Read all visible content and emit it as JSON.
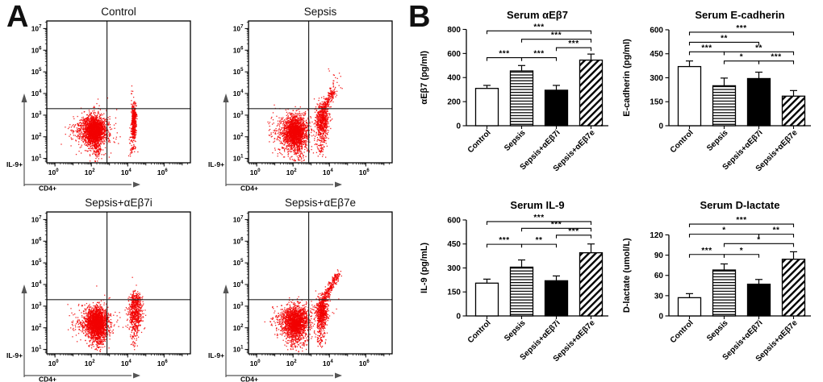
{
  "figure": {
    "panel_a_label": "A",
    "panel_b_label": "B"
  },
  "panel_a": {
    "x_log_range": [
      -0.45,
      7.45
    ],
    "y_log_range": [
      0.8,
      7.35
    ],
    "dot_color": "#f20000",
    "x_axis_label": "CD4+",
    "y_axis_label": "IL-9+"
  },
  "chart_data": [
    {
      "type": "scatter",
      "panel": "A",
      "title": "Control",
      "xlabel": "CD4+",
      "ylabel": "IL-9+",
      "x_scale": "log10",
      "y_scale": "log10",
      "x_ticks_exp": [
        0,
        2,
        4,
        6
      ],
      "y_ticks_exp": [
        1,
        2,
        3,
        4,
        5,
        6,
        7
      ],
      "quadrant_gate": {
        "x_log10": 2.86,
        "y_log10": 3.3
      },
      "populations": [
        {
          "kind": "blob",
          "n": 1700,
          "cx": 2.18,
          "cy": 2.3,
          "sx": 0.3,
          "sy": 0.3
        },
        {
          "kind": "blob",
          "n": 450,
          "cx": 2.1,
          "cy": 2.25,
          "sx": 0.55,
          "sy": 0.48
        },
        {
          "kind": "blob",
          "n": 60,
          "cx": 1.4,
          "cy": 2.3,
          "sx": 0.35,
          "sy": 0.3
        },
        {
          "kind": "streak",
          "n": 160,
          "x1": 2.25,
          "y1": 1.05,
          "x2": 2.3,
          "y2": 2.0,
          "s": 0.22
        },
        {
          "kind": "streak",
          "n": 330,
          "x1": 4.32,
          "y1": 2.0,
          "x2": 4.36,
          "y2": 3.1,
          "s": 0.07
        },
        {
          "kind": "blob",
          "n": 90,
          "cx": 4.34,
          "cy": 3.25,
          "sx": 0.07,
          "sy": 0.18
        },
        {
          "kind": "streak",
          "n": 50,
          "x1": 4.28,
          "y1": 1.25,
          "x2": 4.32,
          "y2": 2.0,
          "s": 0.1
        },
        {
          "kind": "blob",
          "n": 8,
          "cx": 4.3,
          "cy": 3.9,
          "sx": 0.1,
          "sy": 0.25
        }
      ]
    },
    {
      "type": "scatter",
      "panel": "A",
      "title": "Sepsis",
      "xlabel": "CD4+",
      "ylabel": "IL-9+",
      "x_scale": "log10",
      "y_scale": "log10",
      "x_ticks_exp": [
        0,
        2,
        4,
        6
      ],
      "y_ticks_exp": [
        1,
        2,
        3,
        4,
        5,
        6,
        7
      ],
      "quadrant_gate": {
        "x_log10": 2.86,
        "y_log10": 3.3
      },
      "populations": [
        {
          "kind": "blob",
          "n": 1500,
          "cx": 2.12,
          "cy": 2.25,
          "sx": 0.3,
          "sy": 0.32
        },
        {
          "kind": "blob",
          "n": 450,
          "cx": 2.05,
          "cy": 2.2,
          "sx": 0.55,
          "sy": 0.5
        },
        {
          "kind": "blob",
          "n": 60,
          "cx": 1.35,
          "cy": 2.25,
          "sx": 0.35,
          "sy": 0.3
        },
        {
          "kind": "streak",
          "n": 170,
          "x1": 2.2,
          "y1": 1.05,
          "x2": 2.25,
          "y2": 1.95,
          "s": 0.25
        },
        {
          "kind": "blob",
          "n": 600,
          "cx": 3.62,
          "cy": 2.75,
          "sx": 0.17,
          "sy": 0.4
        },
        {
          "kind": "streak",
          "n": 180,
          "x1": 3.7,
          "y1": 3.3,
          "x2": 4.25,
          "y2": 4.15,
          "s": 0.1
        },
        {
          "kind": "blob",
          "n": 25,
          "cx": 4.25,
          "cy": 4.35,
          "sx": 0.22,
          "sy": 0.25
        },
        {
          "kind": "streak",
          "n": 70,
          "x1": 3.55,
          "y1": 1.2,
          "x2": 3.6,
          "y2": 2.1,
          "s": 0.13
        },
        {
          "kind": "blob",
          "n": 2,
          "cx": 4.0,
          "cy": 5.15,
          "sx": 0.05,
          "sy": 0.05
        }
      ]
    },
    {
      "type": "scatter",
      "panel": "A",
      "title": "Sepsis+αEβ7i",
      "xlabel": "CD4+",
      "ylabel": "IL-9+",
      "x_scale": "log10",
      "y_scale": "log10",
      "x_ticks_exp": [
        0,
        2,
        4,
        6
      ],
      "y_ticks_exp": [
        1,
        2,
        3,
        4,
        5,
        6,
        7
      ],
      "quadrant_gate": {
        "x_log10": 2.86,
        "y_log10": 3.3
      },
      "populations": [
        {
          "kind": "blob",
          "n": 1700,
          "cx": 2.32,
          "cy": 2.25,
          "sx": 0.27,
          "sy": 0.33
        },
        {
          "kind": "blob",
          "n": 400,
          "cx": 2.2,
          "cy": 2.2,
          "sx": 0.5,
          "sy": 0.45
        },
        {
          "kind": "blob",
          "n": 50,
          "cx": 1.4,
          "cy": 2.2,
          "sx": 0.3,
          "sy": 0.25
        },
        {
          "kind": "streak",
          "n": 200,
          "x1": 2.35,
          "y1": 1.05,
          "x2": 2.4,
          "y2": 1.95,
          "s": 0.2
        },
        {
          "kind": "blob",
          "n": 520,
          "cx": 4.42,
          "cy": 2.7,
          "sx": 0.2,
          "sy": 0.4
        },
        {
          "kind": "blob",
          "n": 130,
          "cx": 4.45,
          "cy": 3.3,
          "sx": 0.14,
          "sy": 0.16
        },
        {
          "kind": "streak",
          "n": 60,
          "x1": 4.35,
          "y1": 1.25,
          "x2": 4.4,
          "y2": 2.0,
          "s": 0.12
        }
      ]
    },
    {
      "type": "scatter",
      "panel": "A",
      "title": "Sepsis+αEβ7e",
      "xlabel": "CD4+",
      "ylabel": "IL-9+",
      "x_scale": "log10",
      "y_scale": "log10",
      "x_ticks_exp": [
        0,
        2,
        4,
        6
      ],
      "y_ticks_exp": [
        1,
        2,
        3,
        4,
        5,
        6,
        7
      ],
      "quadrant_gate": {
        "x_log10": 2.86,
        "y_log10": 3.3
      },
      "populations": [
        {
          "kind": "blob",
          "n": 1400,
          "cx": 2.15,
          "cy": 2.3,
          "sx": 0.32,
          "sy": 0.32
        },
        {
          "kind": "blob",
          "n": 420,
          "cx": 2.1,
          "cy": 2.25,
          "sx": 0.55,
          "sy": 0.48
        },
        {
          "kind": "blob",
          "n": 60,
          "cx": 1.35,
          "cy": 2.3,
          "sx": 0.35,
          "sy": 0.3
        },
        {
          "kind": "streak",
          "n": 170,
          "x1": 2.2,
          "y1": 1.05,
          "x2": 2.25,
          "y2": 2.0,
          "s": 0.25
        },
        {
          "kind": "blob",
          "n": 620,
          "cx": 3.58,
          "cy": 2.7,
          "sx": 0.16,
          "sy": 0.38
        },
        {
          "kind": "streak",
          "n": 280,
          "x1": 3.62,
          "y1": 3.2,
          "x2": 4.5,
          "y2": 4.55,
          "s": 0.08
        },
        {
          "kind": "streak",
          "n": 80,
          "x1": 3.5,
          "y1": 1.2,
          "x2": 3.55,
          "y2": 2.1,
          "s": 0.13
        },
        {
          "kind": "blob",
          "n": 10,
          "cx": 4.0,
          "cy": 3.0,
          "sx": 0.35,
          "sy": 0.3
        }
      ]
    },
    {
      "type": "bar",
      "panel": "B",
      "title": "Serum αEβ7",
      "ylabel": "αEβ7 (pg/ml)",
      "categories": [
        "Control",
        "Sepsis",
        "Sepsis+αEβ7i",
        "Sepsis+αEβ7e"
      ],
      "values": [
        310,
        455,
        295,
        545
      ],
      "errors_upper": [
        25,
        45,
        40,
        50
      ],
      "yticks": [
        0,
        200,
        400,
        600,
        800
      ],
      "ylim": [
        0,
        830
      ],
      "bar_styles": [
        "open",
        "horizontal-stripes",
        "solid-black",
        "diagonal-stripes"
      ],
      "significance": [
        {
          "groups": [
            0,
            1
          ],
          "label": "***",
          "y": 565
        },
        {
          "groups": [
            1,
            2
          ],
          "label": "***",
          "y": 565
        },
        {
          "groups": [
            2,
            3
          ],
          "label": "***",
          "y": 648
        },
        {
          "groups": [
            1,
            3
          ],
          "label": "***",
          "y": 718
        },
        {
          "groups": [
            0,
            3
          ],
          "label": "***",
          "y": 788
        }
      ]
    },
    {
      "type": "bar",
      "panel": "B",
      "title": "Serum E-cadherin",
      "ylabel": "E-cadherin (pg/ml)",
      "categories": [
        "Control",
        "Sepsis",
        "Sepsis+αEβ7i",
        "Sepsis+αEβ7e"
      ],
      "values": [
        370,
        250,
        295,
        185
      ],
      "errors_upper": [
        35,
        48,
        40,
        35
      ],
      "yticks": [
        0,
        150,
        300,
        450,
        600
      ],
      "ylim": [
        0,
        625
      ],
      "bar_styles": [
        "open",
        "horizontal-stripes",
        "solid-black",
        "diagonal-stripes"
      ],
      "significance": [
        {
          "groups": [
            1,
            2
          ],
          "label": "*",
          "y": 405
        },
        {
          "groups": [
            2,
            3
          ],
          "label": "***",
          "y": 405
        },
        {
          "groups": [
            0,
            1
          ],
          "label": "***",
          "y": 462
        },
        {
          "groups": [
            1,
            3
          ],
          "label": "**",
          "y": 462
        },
        {
          "groups": [
            0,
            2
          ],
          "label": "**",
          "y": 522
        },
        {
          "groups": [
            0,
            3
          ],
          "label": "***",
          "y": 585
        }
      ]
    },
    {
      "type": "bar",
      "panel": "B",
      "title": "Serum IL-9",
      "ylabel": "IL-9 (pg/mL)",
      "categories": [
        "Control",
        "Sepsis",
        "Sepsis+αEβ7i",
        "Sepsis+αEβ7e"
      ],
      "values": [
        205,
        305,
        220,
        395
      ],
      "errors_upper": [
        25,
        45,
        30,
        55
      ],
      "yticks": [
        0,
        150,
        300,
        450,
        600
      ],
      "ylim": [
        0,
        625
      ],
      "bar_styles": [
        "open",
        "horizontal-stripes",
        "solid-black",
        "diagonal-stripes"
      ],
      "significance": [
        {
          "groups": [
            0,
            1
          ],
          "label": "***",
          "y": 448
        },
        {
          "groups": [
            1,
            2
          ],
          "label": "**",
          "y": 448
        },
        {
          "groups": [
            2,
            3
          ],
          "label": "***",
          "y": 505
        },
        {
          "groups": [
            1,
            3
          ],
          "label": "***",
          "y": 548
        },
        {
          "groups": [
            0,
            3
          ],
          "label": "***",
          "y": 590
        }
      ]
    },
    {
      "type": "bar",
      "panel": "B",
      "title": "Serum D-lactate",
      "ylabel": "D-lactate (umol/L)",
      "categories": [
        "Control",
        "Sepsis",
        "Sepsis+αEβ7i",
        "Sepsis+αEβ7e"
      ],
      "values": [
        27,
        68,
        47,
        84
      ],
      "errors_upper": [
        6,
        9,
        7,
        11
      ],
      "yticks": [
        0,
        30,
        60,
        90,
        120
      ],
      "ylim": [
        0,
        148
      ],
      "bar_styles": [
        "open",
        "horizontal-stripes",
        "solid-black",
        "diagonal-stripes"
      ],
      "significance": [
        {
          "groups": [
            0,
            1
          ],
          "label": "***",
          "y": 91
        },
        {
          "groups": [
            1,
            2
          ],
          "label": "*",
          "y": 91
        },
        {
          "groups": [
            1,
            3
          ],
          "label": "*",
          "y": 107
        },
        {
          "groups": [
            0,
            2
          ],
          "label": "*",
          "y": 121
        },
        {
          "groups": [
            2,
            3
          ],
          "label": "**",
          "y": 121
        },
        {
          "groups": [
            0,
            3
          ],
          "label": "***",
          "y": 136
        }
      ]
    }
  ]
}
